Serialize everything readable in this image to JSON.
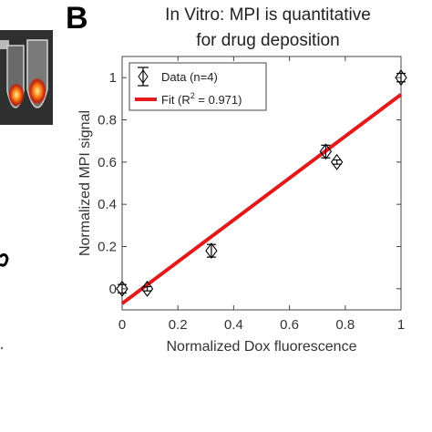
{
  "chart_data": {
    "type": "scatter",
    "panel_label": "B",
    "title": [
      "In Vitro:  MPI is quantitative",
      "for drug deposition"
    ],
    "xlabel": "Normalized Dox fluorescence",
    "ylabel": "Normalized MPI signal",
    "xlim": [
      0,
      1
    ],
    "ylim": [
      -0.1,
      1.1
    ],
    "xticks": [
      0,
      0.2,
      0.4,
      0.6,
      0.8,
      1
    ],
    "xtick_labels": [
      "0",
      "0.2",
      "0.4",
      "0.6",
      "0.8",
      "1"
    ],
    "yticks": [
      0,
      0.2,
      0.4,
      0.6,
      0.8,
      1
    ],
    "ytick_labels": [
      "0",
      "0.2",
      "0.4",
      "0.6",
      "0.8",
      "1"
    ],
    "grid": false,
    "legend_position": "top-left",
    "legend": {
      "data_label": "Data (n=4)",
      "fit_label": "Fit (R",
      "fit_superscript": "2",
      "fit_suffix": " = 0.971)"
    },
    "series": [
      {
        "kind": "points",
        "marker": "diamond",
        "color": "#000000",
        "x": [
          0.0,
          0.09,
          0.32,
          0.73,
          0.77,
          1.0
        ],
        "y": [
          0.0,
          0.0,
          0.18,
          0.65,
          0.6,
          1.0
        ],
        "yerr": [
          0.02,
          0.01,
          0.03,
          0.03,
          0.01,
          0.02
        ]
      },
      {
        "kind": "fit",
        "color": "#e31a1c",
        "x": [
          0.0,
          1.0
        ],
        "y": [
          -0.07,
          0.92
        ]
      }
    ]
  },
  "inset_image": {
    "description_icon": "vials-fluorescence-photo"
  }
}
